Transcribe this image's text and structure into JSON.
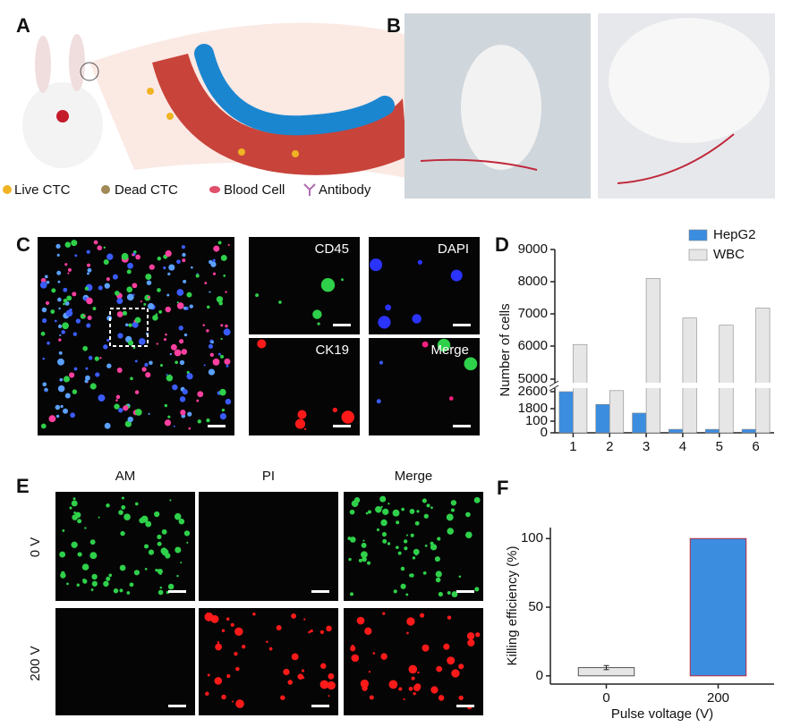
{
  "panel_letters": [
    "A",
    "B",
    "C",
    "D",
    "E",
    "F"
  ],
  "panel_a": {
    "legend": [
      "Live CTC",
      "Dead CTC",
      "Blood Cell",
      "Antibody"
    ]
  },
  "panel_c": {
    "channels": [
      "CD45",
      "DAPI",
      "CK19",
      "Merge"
    ]
  },
  "panel_e": {
    "columns": [
      "AM",
      "PI",
      "Merge"
    ],
    "rows": [
      "0 V",
      "200 V"
    ]
  },
  "chart_data": [
    {
      "type": "bar",
      "y_label": "Number of cells",
      "categories": [
        "1",
        "2",
        "3",
        "4",
        "5",
        "6"
      ],
      "series": [
        {
          "name": "HepG2",
          "color": "#3b8de0",
          "values": [
            2600,
            2000,
            1200,
            30,
            30,
            30
          ]
        },
        {
          "name": "WBC",
          "color": "#e6e6e6",
          "values": [
            6050,
            2800,
            8100,
            6870,
            6650,
            7180
          ]
        }
      ],
      "ylim": [
        0,
        9000
      ],
      "yticks": [
        0,
        100,
        1800,
        2600,
        5000,
        6000,
        7000,
        8000,
        9000
      ],
      "axis_break": true,
      "legend": "top-right"
    },
    {
      "type": "bar",
      "x_label": "Pulse voltage (V)",
      "y_label": "Killing efficiency (%)",
      "categories": [
        "0",
        "200"
      ],
      "values": [
        6,
        100
      ],
      "errors": [
        1.5,
        0
      ],
      "colors": [
        "#e6e6e6",
        "#3b8de0"
      ],
      "ylim": [
        -6,
        108
      ],
      "yticks": [
        0,
        50,
        100
      ]
    }
  ]
}
